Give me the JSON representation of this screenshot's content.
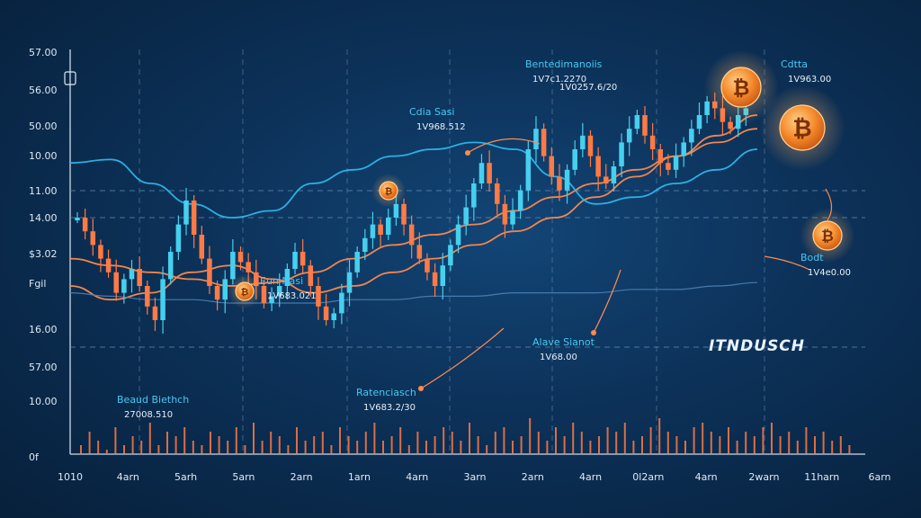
{
  "chart_data": {
    "type": "candlestick",
    "title": "",
    "xlabel": "",
    "ylabel": "",
    "y_tick_labels": [
      "57.00",
      "56.00",
      "50.00",
      "10.00",
      "11.00",
      "14.00",
      "$3.02",
      "Fgil",
      "16.00",
      "57.00",
      "10.00",
      "0f"
    ],
    "x_tick_labels": [
      "1010",
      "4arn",
      "5arh",
      "5arn",
      "2arn",
      "1arn",
      "4arn",
      "3arn",
      "2arn",
      "4arn",
      "0l2arn",
      "4arn",
      "2warn",
      "11harn",
      "6arn"
    ],
    "ylim": [
      0,
      100
    ],
    "grid": true,
    "candles": [
      60,
      56,
      52,
      48,
      44,
      38,
      42,
      45,
      40,
      34,
      30,
      42,
      50,
      58,
      65,
      55,
      48,
      40,
      36,
      42,
      50,
      47,
      44,
      40,
      35,
      37,
      40,
      45,
      50,
      46,
      40,
      34,
      30,
      32,
      38,
      44,
      50,
      54,
      58,
      55,
      60,
      64,
      58,
      52,
      48,
      44,
      40,
      46,
      52,
      58,
      63,
      70,
      76,
      70,
      64,
      58,
      62,
      68,
      80,
      86,
      78,
      72,
      68,
      74,
      80,
      84,
      78,
      72,
      70,
      75,
      82,
      86,
      90,
      84,
      80,
      76,
      74,
      78,
      82,
      86,
      90,
      94,
      92,
      88,
      86,
      90,
      92
    ],
    "moving_averages": [
      {
        "color": "#ff8a4c",
        "values": [
          48,
          46,
          44,
          42,
          40,
          41,
          44,
          48,
          52,
          55,
          58,
          62,
          66,
          70,
          74,
          78,
          82,
          86
        ]
      },
      {
        "color": "#ff8a4c",
        "values": [
          40,
          36,
          38,
          44,
          46,
          42,
          38,
          40,
          44,
          48,
          52,
          56,
          60,
          66,
          72,
          78,
          84,
          90
        ]
      },
      {
        "color": "#2db6ea",
        "values": [
          76,
          77,
          70,
          64,
          60,
          62,
          70,
          74,
          78,
          80,
          82,
          80,
          72,
          64,
          66,
          70,
          74,
          80
        ]
      },
      {
        "color": "#4a7eb2",
        "values": [
          38,
          37,
          36,
          36,
          35,
          35,
          35,
          36,
          36,
          37,
          37,
          38,
          38,
          38,
          39,
          39,
          40,
          41
        ]
      }
    ],
    "volume": [
      2,
      5,
      3,
      1,
      6,
      2,
      4,
      3,
      7,
      2,
      5,
      4,
      6,
      3,
      2,
      5,
      4,
      3,
      6,
      2,
      7,
      3,
      5,
      4,
      2,
      6,
      3,
      4,
      5,
      2,
      6,
      4,
      3,
      5,
      7,
      3,
      4,
      6,
      2,
      5,
      3,
      4,
      6,
      5,
      3,
      7,
      4,
      2,
      5,
      6,
      3,
      4,
      8,
      5,
      3,
      6,
      4,
      7,
      5,
      3,
      4,
      6,
      5,
      7,
      3,
      4,
      6,
      8,
      5,
      4,
      3,
      6,
      7,
      5,
      4,
      6,
      3,
      5,
      4,
      6,
      7,
      4,
      5,
      3,
      6,
      4,
      5,
      3,
      4,
      2
    ]
  },
  "annotations": [
    {
      "title": "Bentedimanoiis",
      "value": "1V7c1.2270"
    },
    {
      "title": "",
      "value": "1V0257.6/20"
    },
    {
      "title": "Cdia Sasi",
      "value": "1V968.512"
    },
    {
      "title": "Cdtta",
      "value": "1V963.00"
    },
    {
      "title": "Eun Nasi",
      "value": "1V683.021"
    },
    {
      "title": "Bodt",
      "value": "1V4e0.00"
    },
    {
      "title": "Alave Sianot",
      "value": "1V68.00"
    },
    {
      "title": "Ratenciasch",
      "value": "1V683.2/30"
    },
    {
      "title": "Beaud Biethch",
      "value": "27008.510"
    }
  ],
  "brand": "ITNDUSCH",
  "colors": {
    "up": "#45d0ee",
    "down": "#ff7a45",
    "coin": "#f58a2c",
    "grid": "#5f86ad"
  }
}
